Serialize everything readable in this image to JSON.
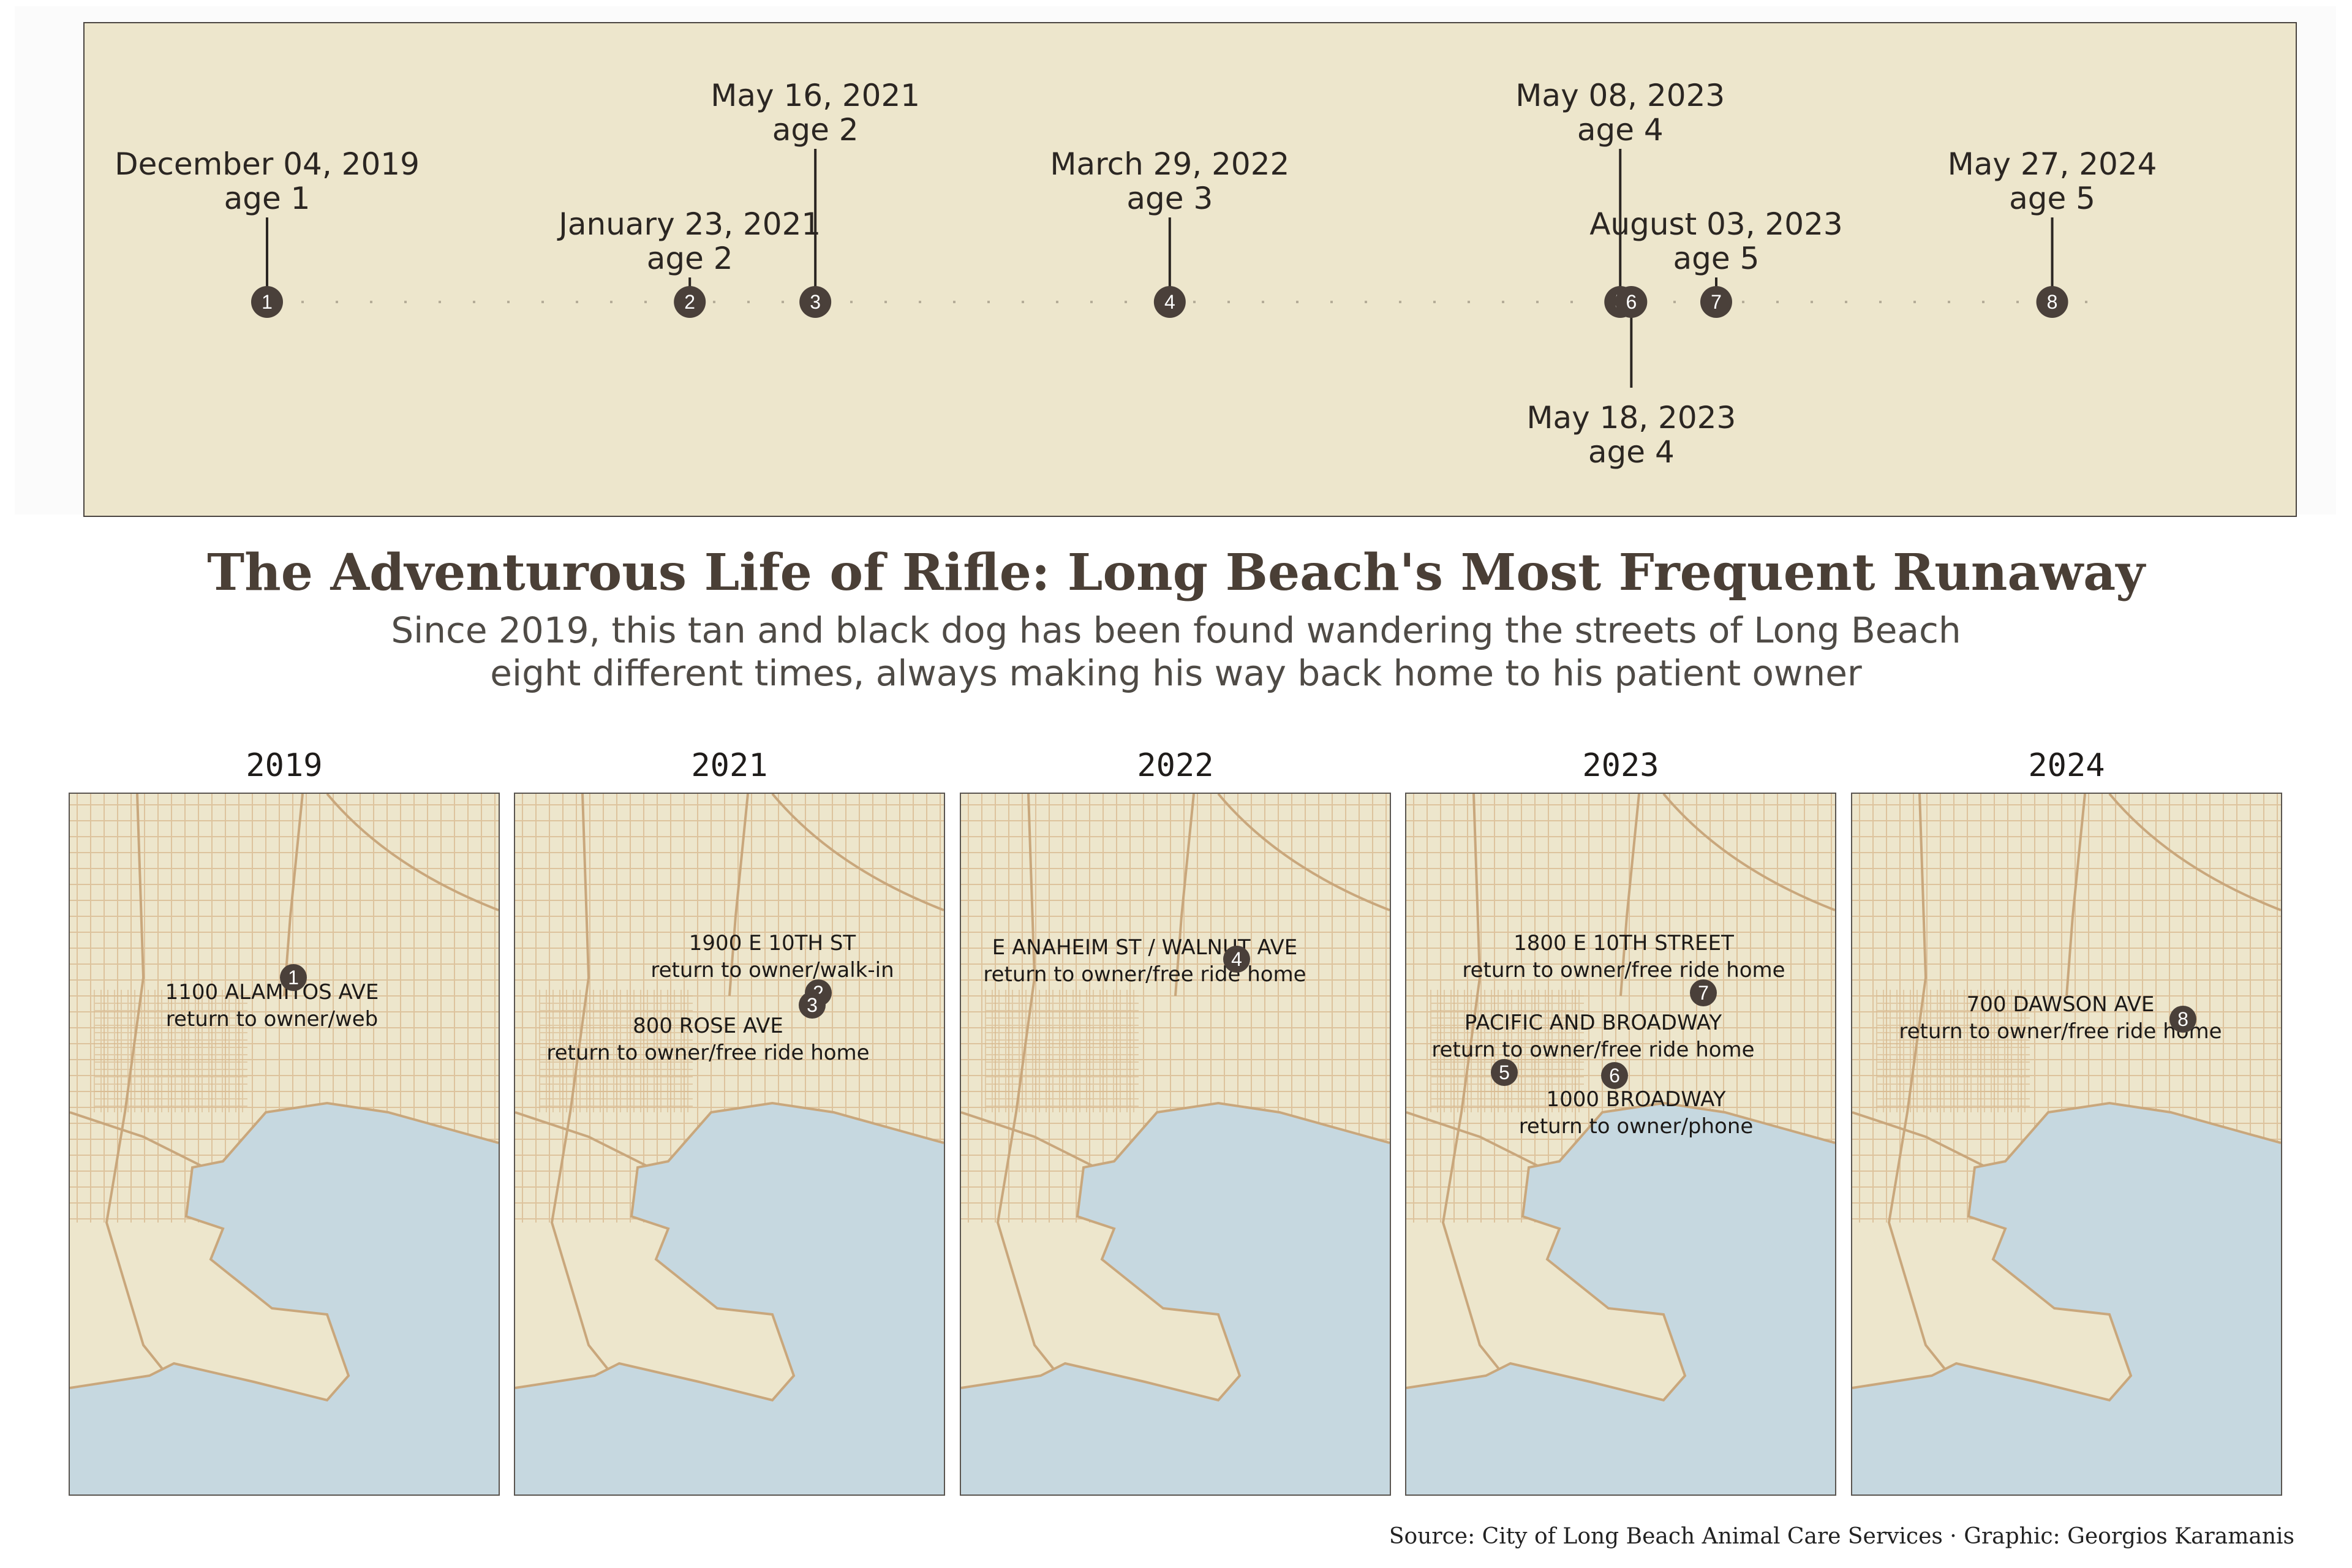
{
  "timeline": {
    "events": [
      {
        "n": "1",
        "date": "December 04, 2019",
        "age": "age 1",
        "t": 0.0
      },
      {
        "n": "2",
        "date": "January 23, 2021",
        "age": "age 2",
        "t": 0.229
      },
      {
        "n": "3",
        "date": "May 16, 2021",
        "age": "age 2",
        "t": 0.297
      },
      {
        "n": "4",
        "date": "March 29, 2022",
        "age": "age 3",
        "t": 0.489
      },
      {
        "n": "5",
        "date": "May 08, 2023",
        "age": "age 4",
        "t": 0.733
      },
      {
        "n": "6",
        "date": "May 18, 2023",
        "age": "age 4",
        "t": 0.739
      },
      {
        "n": "7",
        "date": "August 03, 2023",
        "age": "age 5",
        "t": 0.785
      },
      {
        "n": "8",
        "date": "May 27, 2024",
        "age": "age 5",
        "t": 0.967
      }
    ]
  },
  "title": "The Adventurous Life of Rifle: Long Beach's Most Frequent Runaway",
  "subtitle_line1": "Since 2019, this tan and black dog has been found wandering the streets of Long Beach",
  "subtitle_line2": "eight different times, always making his way back home to his patient owner",
  "panels": [
    {
      "year": "2019",
      "markers": [
        {
          "n": "1",
          "address": "1100 ALAMITOS AVE",
          "outcome": "return to owner/web"
        }
      ]
    },
    {
      "year": "2021",
      "markers": [
        {
          "n": "2",
          "address": "1900 E 10TH ST",
          "outcome": "return to owner/walk-in"
        },
        {
          "n": "3",
          "address": "800 ROSE AVE",
          "outcome": "return to owner/free ride home"
        }
      ]
    },
    {
      "year": "2022",
      "markers": [
        {
          "n": "4",
          "address": "E ANAHEIM ST / WALNUT AVE",
          "outcome": "return to owner/free ride home"
        }
      ]
    },
    {
      "year": "2023",
      "markers": [
        {
          "n": "7",
          "address": "1800 E 10TH STREET",
          "outcome": "return to owner/free ride home"
        },
        {
          "n": "5",
          "address": "PACIFIC AND BROADWAY",
          "outcome": "return to owner/free ride home"
        },
        {
          "n": "6",
          "address": "1000 BROADWAY",
          "outcome": "return to owner/phone"
        }
      ]
    },
    {
      "year": "2024",
      "markers": [
        {
          "n": "8",
          "address": "700 DAWSON AVE",
          "outcome": "return to owner/free ride home"
        }
      ]
    }
  ],
  "source": "Source: City of Long Beach Animal Care Services · Graphic: Georgios Karamanis",
  "colors": {
    "land": "#ede6cc",
    "water": "#c6d8e0",
    "streets": "#d8b88e",
    "marker": "#4a403a",
    "ink": "#2b2622"
  }
}
